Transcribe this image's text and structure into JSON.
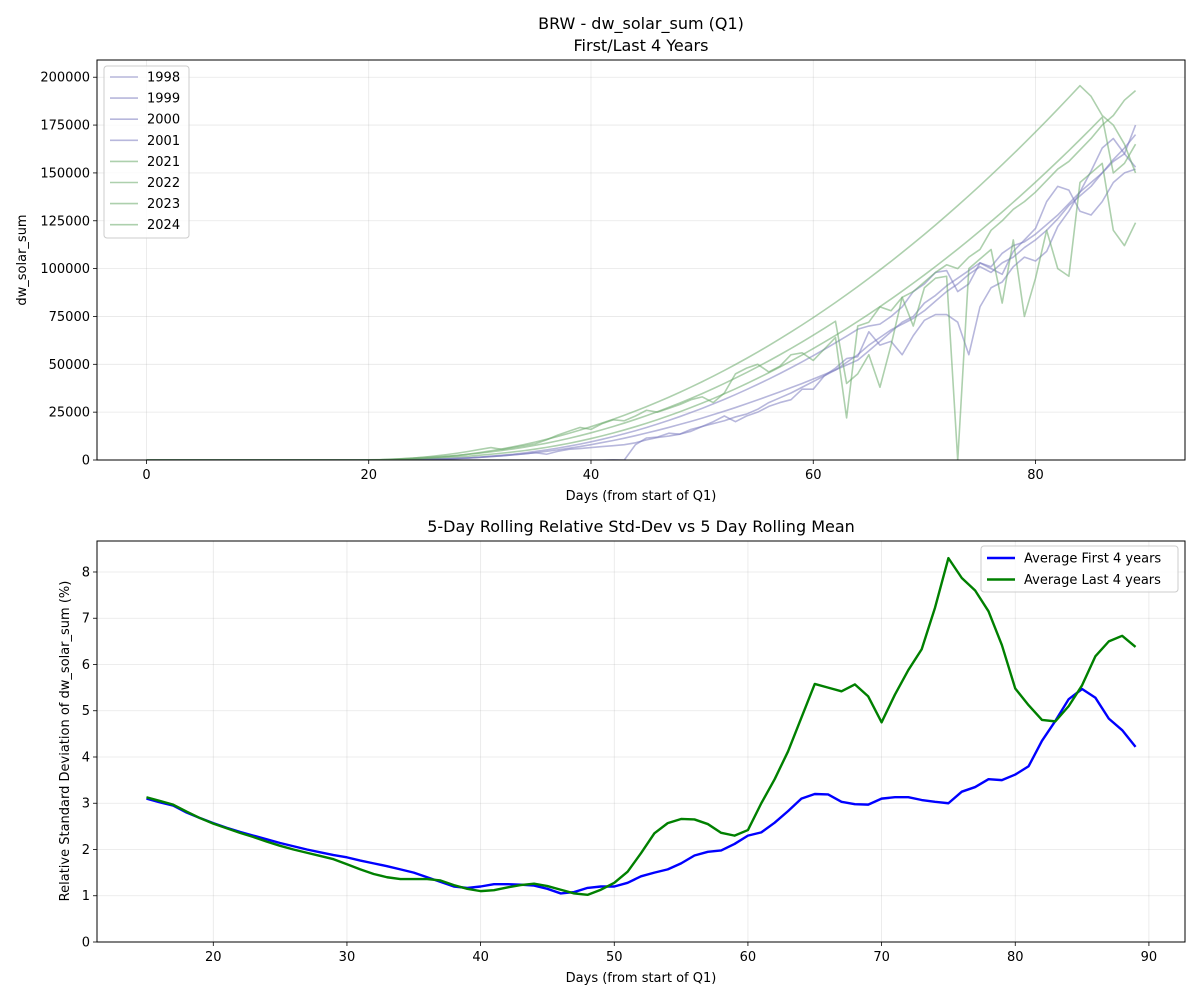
{
  "chart_data": [
    {
      "type": "line",
      "title": "BRW - dw_solar_sum (Q1)",
      "subtitle": "First/Last 4 Years",
      "xlabel": "Days (from start of Q1)",
      "ylabel": "dw_solar_sum",
      "xlim": [
        -4.45,
        93.45
      ],
      "ylim": [
        0,
        209000
      ],
      "xticks": [
        0,
        20,
        40,
        60,
        80
      ],
      "yticks": [
        0,
        25000,
        50000,
        75000,
        100000,
        125000,
        150000,
        175000,
        200000
      ],
      "grid": true,
      "legend_position": "upper-left",
      "colors": {
        "first": "#7b7bbf",
        "last": "#6aaa6a"
      },
      "series": [
        {
          "name": "1998",
          "group": "first",
          "values": [
            0,
            0,
            0,
            0,
            0,
            0,
            0,
            0,
            0,
            0,
            0,
            0,
            0,
            0,
            0,
            0,
            0,
            0,
            0,
            0,
            100,
            100,
            200,
            300,
            400,
            500,
            600,
            700,
            900,
            1100,
            1400,
            1800,
            2200,
            2700,
            3200,
            3800,
            4500,
            5300,
            6100,
            7000,
            8000,
            9100,
            10200,
            11400,
            12700,
            14100,
            15500,
            17000,
            18600,
            20200,
            21900,
            23700,
            25500,
            27400,
            29400,
            31400,
            33500,
            35600,
            37800,
            40000,
            42300,
            44700,
            47100,
            49600,
            52200,
            57000,
            62000,
            67000,
            72000,
            75000,
            82000,
            86000,
            91000,
            95000,
            99000,
            103000,
            101000,
            108000,
            112000,
            114000,
            118000,
            123000,
            128000,
            134000,
            140000,
            145000,
            150000,
            157000,
            163000,
            170000
          ]
        },
        {
          "name": "1999",
          "group": "first",
          "values": [
            0,
            0,
            0,
            0,
            0,
            0,
            0,
            0,
            0,
            0,
            0,
            0,
            0,
            0,
            0,
            0,
            0,
            0,
            0,
            0,
            0,
            100,
            200,
            300,
            400,
            500,
            600,
            700,
            900,
            1100,
            1400,
            1800,
            2200,
            2700,
            3200,
            3800,
            3000,
            4500,
            5600,
            6000,
            6500,
            7000,
            7500,
            8000,
            9000,
            10500,
            11800,
            12500,
            13500,
            15000,
            17500,
            19000,
            20500,
            22500,
            24000,
            26500,
            30000,
            32500,
            35000,
            38000,
            41000,
            44000,
            47000,
            51000,
            55000,
            60000,
            64000,
            68000,
            71000,
            74000,
            78000,
            83000,
            88000,
            92000,
            97000,
            101000,
            98000,
            103000,
            106000,
            111000,
            115000,
            120000,
            126000,
            133000,
            138000,
            143000,
            150000,
            156000,
            160000,
            175000
          ]
        },
        {
          "name": "2000",
          "group": "first",
          "values": [
            0,
            0,
            0,
            0,
            0,
            0,
            0,
            0,
            0,
            0,
            0,
            0,
            0,
            0,
            0,
            0,
            0,
            0,
            0,
            0,
            0,
            0,
            0,
            0,
            0,
            0,
            0,
            0,
            0,
            0,
            0,
            0,
            0,
            0,
            0,
            0,
            0,
            0,
            0,
            0,
            0,
            0,
            100,
            0,
            8000,
            11500,
            12000,
            14000,
            13500,
            16000,
            17500,
            20000,
            23000,
            20000,
            23000,
            25000,
            28000,
            30000,
            31500,
            37000,
            37000,
            44000,
            48000,
            53000,
            54000,
            67000,
            60000,
            62000,
            55000,
            65000,
            73000,
            76000,
            76000,
            72000,
            55000,
            80000,
            90000,
            93000,
            101000,
            106000,
            104000,
            109000,
            122000,
            130000,
            140000,
            151000,
            163000,
            168000,
            160000,
            153000
          ]
        },
        {
          "name": "2001",
          "group": "first",
          "values": [
            0,
            0,
            0,
            0,
            0,
            0,
            0,
            0,
            0,
            0,
            0,
            0,
            0,
            0,
            0,
            0,
            0,
            0,
            0,
            0,
            0,
            0,
            0,
            0,
            100,
            200,
            300,
            500,
            800,
            1100,
            1500,
            2000,
            2500,
            3000,
            3700,
            4500,
            5300,
            6200,
            7200,
            8300,
            9500,
            10800,
            12200,
            13700,
            15300,
            17000,
            18800,
            20700,
            22700,
            24800,
            27000,
            29300,
            31700,
            34200,
            36800,
            39500,
            42300,
            45200,
            48200,
            51300,
            54500,
            57800,
            61200,
            64700,
            68300,
            70000,
            71000,
            75000,
            80000,
            88000,
            92000,
            98000,
            99000,
            88000,
            92000,
            103000,
            100000,
            97000,
            109000,
            115000,
            121000,
            135000,
            143000,
            141000,
            130000,
            128000,
            135000,
            145000,
            150000,
            152000
          ]
        },
        {
          "name": "2021",
          "group": "last",
          "values": [
            0,
            0,
            0,
            0,
            0,
            0,
            0,
            0,
            0,
            0,
            0,
            0,
            0,
            0,
            0,
            0,
            0,
            0,
            0,
            0,
            0,
            100,
            200,
            400,
            600,
            900,
            1300,
            1800,
            2400,
            3100,
            3900,
            4800,
            5800,
            6900,
            8100,
            9400,
            10800,
            12300,
            13900,
            15600,
            17400,
            19300,
            21300,
            23400,
            25600,
            27900,
            30300,
            32800,
            35400,
            38100,
            40900,
            43800,
            46800,
            49900,
            53100,
            56400,
            59800,
            63300,
            66900,
            70600,
            74400,
            78300,
            82300,
            86400,
            90600,
            94900,
            99300,
            103800,
            108400,
            113100,
            117900,
            122800,
            127800,
            132900,
            138100,
            143400,
            148800,
            154300,
            159900,
            165600,
            171400,
            177300,
            183300,
            189400,
            195600,
            190000,
            180000,
            175000,
            165000,
            150000
          ]
        },
        {
          "name": "2022",
          "group": "last",
          "values": [
            0,
            0,
            0,
            0,
            0,
            0,
            0,
            0,
            0,
            0,
            0,
            0,
            0,
            0,
            0,
            0,
            0,
            0,
            0,
            0,
            100,
            200,
            400,
            700,
            1000,
            1500,
            2100,
            2800,
            3600,
            4500,
            5500,
            6500,
            5500,
            6500,
            7500,
            8500,
            10500,
            13000,
            15000,
            17000,
            16000,
            19000,
            21000,
            20500,
            23000,
            26000,
            25000,
            27000,
            29000,
            31500,
            33000,
            30000,
            35000,
            45000,
            48000,
            50000,
            46000,
            49000,
            55000,
            56000,
            52000,
            58000,
            64000,
            22000,
            70000,
            72000,
            80000,
            78000,
            85000,
            88000,
            93000,
            98000,
            102000,
            100000,
            106000,
            110000,
            120000,
            125000,
            131000,
            135000,
            140000,
            146000,
            152000,
            156000,
            162000,
            168000,
            175000,
            180000,
            188000,
            193000
          ]
        },
        {
          "name": "2023",
          "group": "last",
          "values": [
            0,
            0,
            0,
            0,
            0,
            0,
            0,
            0,
            0,
            0,
            0,
            0,
            0,
            0,
            0,
            0,
            0,
            0,
            0,
            0,
            0,
            100,
            300,
            600,
            1000,
            1400,
            1700,
            2000,
            2400,
            3000,
            3600,
            4300,
            5000,
            5800,
            6700,
            7700,
            8800,
            10000,
            11300,
            12700,
            14200,
            15800,
            17500,
            19300,
            21200,
            23200,
            25300,
            27500,
            29800,
            32200,
            34700,
            37300,
            40000,
            42800,
            45700,
            48700,
            51800,
            55000,
            58300,
            61700,
            65200,
            68800,
            72500,
            40000,
            45000,
            55000,
            38000,
            60000,
            85000,
            70000,
            90000,
            95000,
            96000,
            0,
            100000,
            105000,
            110000,
            82000,
            115000,
            75000,
            95000,
            120000,
            100000,
            96000,
            145000,
            150000,
            155000,
            120000,
            112000,
            124000
          ]
        },
        {
          "name": "2024",
          "group": "last",
          "values": [
            0,
            0,
            0,
            0,
            0,
            0,
            0,
            0,
            0,
            0,
            0,
            0,
            0,
            0,
            0,
            0,
            0,
            0,
            0,
            0,
            0,
            0,
            100,
            300,
            600,
            900,
            1100,
            1400,
            1700,
            2000,
            2500,
            3000,
            3600,
            4200,
            4900,
            5700,
            6600,
            7600,
            8700,
            9900,
            11200,
            12600,
            14100,
            15700,
            17400,
            19200,
            21100,
            23100,
            25200,
            27400,
            29700,
            32100,
            34600,
            37200,
            39900,
            42700,
            45600,
            48600,
            51700,
            54900,
            58200,
            61600,
            65100,
            68700,
            72400,
            76200,
            80100,
            84100,
            88200,
            92400,
            96700,
            101100,
            105600,
            110200,
            114900,
            119700,
            124600,
            129600,
            134700,
            139900,
            145200,
            150600,
            156100,
            161700,
            167400,
            173200,
            179100,
            150000,
            155000,
            165000
          ]
        }
      ]
    },
    {
      "type": "line",
      "title": "5-Day Rolling Relative Std-Dev vs 5 Day Rolling Mean",
      "xlabel": "Days (from start of Q1)",
      "ylabel": "Relative Standard Deviation of dw_solar_sum (%)",
      "xlim": [
        11.3,
        92.7
      ],
      "ylim": [
        0,
        8.67
      ],
      "xticks": [
        20,
        30,
        40,
        50,
        60,
        70,
        80,
        90
      ],
      "yticks": [
        0,
        1,
        2,
        3,
        4,
        5,
        6,
        7,
        8
      ],
      "grid": true,
      "legend_position": "upper-right",
      "x": [
        15,
        16,
        17,
        18,
        19,
        20,
        21,
        22,
        23,
        24,
        25,
        26,
        27,
        28,
        29,
        30,
        31,
        32,
        33,
        34,
        35,
        36,
        37,
        38,
        39,
        40,
        41,
        42,
        43,
        44,
        45,
        46,
        47,
        48,
        49,
        50,
        51,
        52,
        53,
        54,
        55,
        56,
        57,
        58,
        59,
        60,
        61,
        62,
        63,
        64,
        65,
        66,
        67,
        68,
        69,
        70,
        71,
        72,
        73,
        74,
        75,
        76,
        77,
        78,
        79,
        80,
        81,
        82,
        83,
        84,
        85,
        86,
        87,
        88,
        89
      ],
      "series": [
        {
          "name": "Average First 4 years",
          "color": "#0000ff",
          "values": [
            3.1,
            3.02,
            2.95,
            2.8,
            2.68,
            2.57,
            2.47,
            2.38,
            2.3,
            2.22,
            2.14,
            2.07,
            2.0,
            1.94,
            1.88,
            1.83,
            1.76,
            1.7,
            1.64,
            1.57,
            1.5,
            1.4,
            1.3,
            1.2,
            1.17,
            1.2,
            1.25,
            1.25,
            1.24,
            1.22,
            1.15,
            1.05,
            1.08,
            1.17,
            1.2,
            1.2,
            1.28,
            1.42,
            1.5,
            1.57,
            1.7,
            1.87,
            1.95,
            1.98,
            2.12,
            2.3,
            2.37,
            2.58,
            2.83,
            3.1,
            3.2,
            3.19,
            3.03,
            2.98,
            2.97,
            3.1,
            3.13,
            3.13,
            3.07,
            3.03,
            3.0,
            3.25,
            3.35,
            3.52,
            3.5,
            3.62,
            3.8,
            4.35,
            4.78,
            5.25,
            5.47,
            5.28,
            4.83,
            4.58,
            4.22
          ]
        },
        {
          "name": "Average Last 4 years",
          "color": "#008000",
          "values": [
            3.13,
            3.05,
            2.97,
            2.82,
            2.68,
            2.56,
            2.46,
            2.36,
            2.27,
            2.17,
            2.08,
            2.0,
            1.93,
            1.86,
            1.79,
            1.68,
            1.57,
            1.47,
            1.4,
            1.36,
            1.36,
            1.36,
            1.33,
            1.23,
            1.15,
            1.1,
            1.12,
            1.18,
            1.23,
            1.26,
            1.21,
            1.13,
            1.05,
            1.02,
            1.13,
            1.28,
            1.52,
            1.92,
            2.35,
            2.57,
            2.66,
            2.65,
            2.55,
            2.36,
            2.3,
            2.42,
            3.0,
            3.52,
            4.12,
            4.85,
            5.58,
            5.5,
            5.42,
            5.57,
            5.31,
            4.75,
            5.35,
            5.88,
            6.33,
            7.23,
            8.3,
            7.87,
            7.6,
            7.15,
            6.42,
            5.48,
            5.12,
            4.8,
            4.77,
            5.1,
            5.55,
            6.18,
            6.5,
            6.62,
            6.38
          ]
        }
      ]
    }
  ]
}
